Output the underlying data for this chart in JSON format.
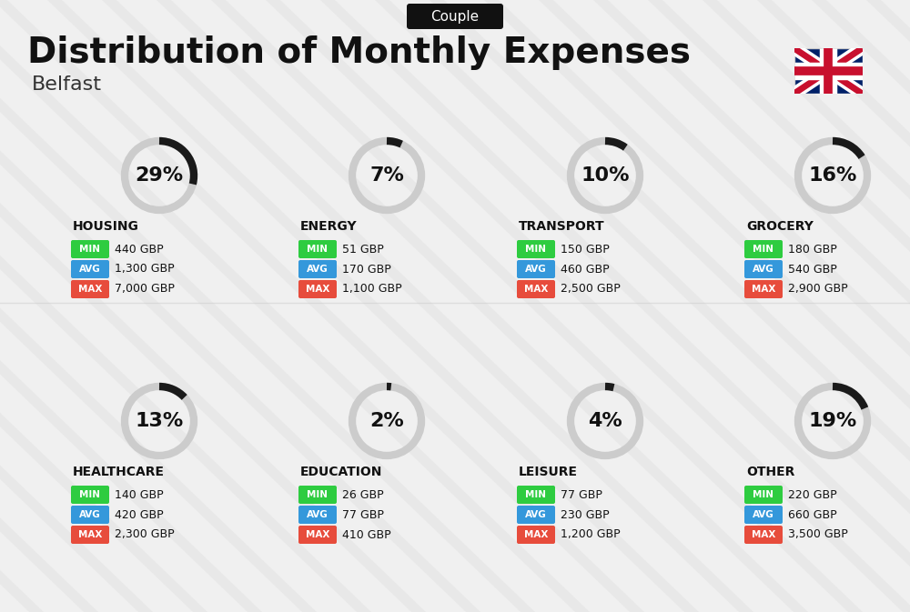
{
  "title": "Distribution of Monthly Expenses",
  "subtitle": "Belfast",
  "badge": "Couple",
  "bg_color": "#f0f0f0",
  "categories": [
    {
      "name": "HOUSING",
      "pct": 29,
      "min_val": "440 GBP",
      "avg_val": "1,300 GBP",
      "max_val": "7,000 GBP",
      "row": 0,
      "col": 0
    },
    {
      "name": "ENERGY",
      "pct": 7,
      "min_val": "51 GBP",
      "avg_val": "170 GBP",
      "max_val": "1,100 GBP",
      "row": 0,
      "col": 1
    },
    {
      "name": "TRANSPORT",
      "pct": 10,
      "min_val": "150 GBP",
      "avg_val": "460 GBP",
      "max_val": "2,500 GBP",
      "row": 0,
      "col": 2
    },
    {
      "name": "GROCERY",
      "pct": 16,
      "min_val": "180 GBP",
      "avg_val": "540 GBP",
      "max_val": "2,900 GBP",
      "row": 0,
      "col": 3
    },
    {
      "name": "HEALTHCARE",
      "pct": 13,
      "min_val": "140 GBP",
      "avg_val": "420 GBP",
      "max_val": "2,300 GBP",
      "row": 1,
      "col": 0
    },
    {
      "name": "EDUCATION",
      "pct": 2,
      "min_val": "26 GBP",
      "avg_val": "77 GBP",
      "max_val": "410 GBP",
      "row": 1,
      "col": 1
    },
    {
      "name": "LEISURE",
      "pct": 4,
      "min_val": "77 GBP",
      "avg_val": "230 GBP",
      "max_val": "1,200 GBP",
      "row": 1,
      "col": 2
    },
    {
      "name": "OTHER",
      "pct": 19,
      "min_val": "220 GBP",
      "avg_val": "660 GBP",
      "max_val": "3,500 GBP",
      "row": 1,
      "col": 3
    }
  ],
  "min_color": "#2ecc40",
  "avg_color": "#3498db",
  "max_color": "#e74c3c",
  "label_color": "#ffffff",
  "ring_active_color": "#1a1a1a",
  "ring_inactive_color": "#cccccc",
  "pct_fontsize": 18,
  "cat_fontsize": 10,
  "val_fontsize": 9,
  "title_fontsize": 28,
  "subtitle_fontsize": 16,
  "badge_fontsize": 11
}
